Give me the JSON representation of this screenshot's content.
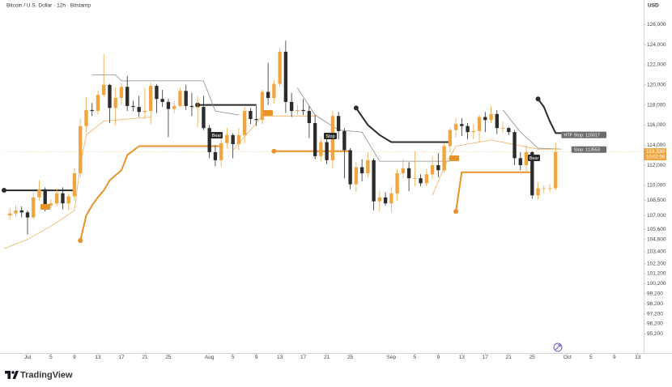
{
  "chart_data": {
    "type": "candlestick",
    "title": "Bitcoin / U.S. Dollar · 12h · Bitstamp",
    "currency": "USD",
    "brand": "TradingView",
    "up_color": "#f0a540",
    "down_color": "#2b2b2b",
    "x": [
      "Jun 28",
      "Jun 29",
      "Jun 30",
      "Jul 1",
      "Jul 2",
      "Jul 3",
      "Jul 4",
      "Jul 5",
      "Jul 6",
      "Jul 7",
      "Jul 8",
      "Jul 9",
      "Jul 10",
      "Jul 11",
      "Jul 12",
      "Jul 13",
      "Jul 14",
      "Jul 15",
      "Jul 16",
      "Jul 17",
      "Jul 18",
      "Jul 19",
      "Jul 20",
      "Jul 21",
      "Jul 22",
      "Jul 23",
      "Jul 24",
      "Jul 25",
      "Jul 26",
      "Jul 27",
      "Jul 28",
      "Jul 29",
      "Jul 30",
      "Jul 31",
      "Aug 1",
      "Aug 2",
      "Aug 3",
      "Aug 4",
      "Aug 5",
      "Aug 6",
      "Aug 7",
      "Aug 8",
      "Aug 9",
      "Aug 10",
      "Aug 11",
      "Aug 12",
      "Aug 13",
      "Aug 14",
      "Aug 15",
      "Aug 16",
      "Aug 17",
      "Aug 18",
      "Aug 19",
      "Aug 20",
      "Aug 21",
      "Aug 22",
      "Aug 23",
      "Aug 24",
      "Aug 25",
      "Aug 26",
      "Aug 27",
      "Aug 28",
      "Aug 29",
      "Aug 30",
      "Aug 31",
      "Sep 1",
      "Sep 2",
      "Sep 3",
      "Sep 4",
      "Sep 5",
      "Sep 6",
      "Sep 7",
      "Sep 8",
      "Sep 9",
      "Sep 10",
      "Sep 11",
      "Sep 12",
      "Sep 13",
      "Sep 14",
      "Sep 15",
      "Sep 16",
      "Sep 17",
      "Sep 18",
      "Sep 19",
      "Sep 20",
      "Sep 21",
      "Sep 22",
      "Sep 23",
      "Sep 24",
      "Sep 25",
      "Sep 26",
      "Sep 27",
      "Sep 28",
      "Sep 29"
    ],
    "open": [
      107000,
      107200,
      107500,
      107300,
      106800,
      108800,
      109600,
      108000,
      108200,
      109200,
      108200,
      108900,
      111200,
      115900,
      117500,
      117400,
      119000,
      120000,
      117700,
      118700,
      119800,
      117900,
      117800,
      117300,
      117400,
      119900,
      118600,
      118300,
      117600,
      117900,
      119400,
      117900,
      117800,
      117800,
      115700,
      113300,
      112500,
      114200,
      115000,
      114100,
      115000,
      117400,
      116600,
      116500,
      119300,
      118700,
      120100,
      123300,
      118300,
      117400,
      117500,
      117400,
      116200,
      112900,
      114300,
      112500,
      116900,
      115400,
      113500,
      110100,
      111800,
      111200,
      112500,
      108400,
      108800,
      108200,
      109200,
      111200,
      111700,
      110700,
      110700,
      110200,
      111100,
      112000,
      111500,
      113900,
      115500,
      116100,
      115900,
      115300,
      115400,
      116800,
      116500,
      117100,
      115700,
      115700,
      115300,
      112700,
      112000,
      113300,
      109000,
      109700,
      109700,
      109700
    ],
    "high": [
      107700,
      108000,
      107900,
      107500,
      109300,
      110500,
      109800,
      108600,
      109700,
      109800,
      109200,
      111700,
      116600,
      118800,
      118200,
      119400,
      123100,
      120100,
      119700,
      120200,
      120900,
      118400,
      118900,
      119700,
      120200,
      120100,
      119500,
      118600,
      118400,
      119700,
      120000,
      119200,
      118900,
      118900,
      116000,
      114000,
      114900,
      115700,
      115200,
      115700,
      117800,
      117700,
      117900,
      119500,
      122200,
      120500,
      123700,
      124400,
      119200,
      118000,
      118600,
      117900,
      117000,
      114700,
      114800,
      117400,
      117300,
      115700,
      113700,
      112300,
      112600,
      113300,
      112700,
      109400,
      109300,
      109800,
      111600,
      112600,
      112300,
      113400,
      111100,
      111600,
      112900,
      113200,
      114200,
      115700,
      116700,
      116700,
      116200,
      116100,
      117000,
      117300,
      117900,
      117500,
      116300,
      115800,
      115500,
      113300,
      114000,
      113400,
      110300,
      110000,
      110100,
      114300
    ],
    "low": [
      106600,
      106900,
      106800,
      105100,
      106600,
      108500,
      107400,
      107700,
      107900,
      107600,
      107500,
      108500,
      110900,
      115300,
      116900,
      117000,
      118800,
      116200,
      116000,
      118000,
      117400,
      117400,
      116800,
      116600,
      116100,
      117200,
      117800,
      114800,
      117200,
      117800,
      117500,
      116900,
      115800,
      115500,
      112700,
      111900,
      111900,
      113700,
      112700,
      113500,
      114200,
      116100,
      115900,
      116100,
      118000,
      118100,
      119800,
      117200,
      116800,
      117000,
      117000,
      114700,
      112600,
      112400,
      112100,
      111700,
      114600,
      110700,
      109600,
      109300,
      110400,
      110800,
      107500,
      107400,
      108000,
      107300,
      108500,
      110700,
      109400,
      109900,
      109900,
      109900,
      110600,
      110800,
      111300,
      113300,
      114800,
      114900,
      114600,
      114600,
      114300,
      115300,
      116200,
      115100,
      115200,
      115000,
      112000,
      111500,
      111300,
      108700,
      108600,
      109200,
      109300,
      109500
    ],
    "close": [
      107200,
      107500,
      107300,
      106800,
      108800,
      109600,
      108000,
      108200,
      109200,
      108200,
      108900,
      111200,
      115900,
      117500,
      117400,
      119000,
      120000,
      117700,
      118700,
      119800,
      117900,
      117800,
      117300,
      117400,
      119900,
      118600,
      118300,
      117600,
      117900,
      119400,
      117900,
      117800,
      117800,
      115700,
      113300,
      112500,
      114200,
      115000,
      114100,
      115000,
      117400,
      116600,
      116500,
      119300,
      118700,
      120100,
      123300,
      118300,
      117400,
      117500,
      117400,
      116200,
      112900,
      114300,
      112500,
      116900,
      115400,
      113500,
      110100,
      111800,
      111200,
      112500,
      108400,
      108800,
      108200,
      109200,
      111200,
      111700,
      110700,
      110700,
      110200,
      111100,
      112000,
      111500,
      113900,
      115500,
      116100,
      115900,
      115300,
      115400,
      116800,
      116500,
      117100,
      115700,
      115700,
      115300,
      112700,
      112000,
      113300,
      109000,
      109700,
      109700,
      109700,
      113330
    ],
    "xlim": [
      "Jun 27",
      "Oct 14"
    ],
    "xticks": [
      {
        "value": "Jul 1",
        "label": "Jul"
      },
      {
        "value": "Jul 5",
        "label": "5"
      },
      {
        "value": "Jul 9",
        "label": "9"
      },
      {
        "value": "Jul 13",
        "label": "13"
      },
      {
        "value": "Jul 17",
        "label": "17"
      },
      {
        "value": "Jul 21",
        "label": "21"
      },
      {
        "value": "Jul 25",
        "label": "25"
      },
      {
        "value": "Aug 1",
        "label": "Aug"
      },
      {
        "value": "Aug 5",
        "label": "5"
      },
      {
        "value": "Aug 9",
        "label": "9"
      },
      {
        "value": "Aug 13",
        "label": "13"
      },
      {
        "value": "Aug 17",
        "label": "17"
      },
      {
        "value": "Aug 21",
        "label": "21"
      },
      {
        "value": "Aug 25",
        "label": "25"
      },
      {
        "value": "Sep 1",
        "label": "Sep"
      },
      {
        "value": "Sep 5",
        "label": "5"
      },
      {
        "value": "Sep 9",
        "label": "9"
      },
      {
        "value": "Sep 13",
        "label": "13"
      },
      {
        "value": "Sep 17",
        "label": "17"
      },
      {
        "value": "Sep 21",
        "label": "21"
      },
      {
        "value": "Sep 25",
        "label": "25"
      },
      {
        "value": "Oct 1",
        "label": "Oct"
      },
      {
        "value": "Oct 5",
        "label": "5"
      },
      {
        "value": "Oct 9",
        "label": "9"
      },
      {
        "value": "Oct 13",
        "label": "13"
      }
    ],
    "ylim": [
      93300,
      127000
    ],
    "yticks": [
      {
        "value": 126000,
        "label": "126,000"
      },
      {
        "value": 124000,
        "label": "124,000"
      },
      {
        "value": 122000,
        "label": "122,000"
      },
      {
        "value": 120000,
        "label": "120,000"
      },
      {
        "value": 118000,
        "label": "118,000"
      },
      {
        "value": 116000,
        "label": "116,000"
      },
      {
        "value": 114000,
        "label": "114,000"
      },
      {
        "value": 112000,
        "label": "112,000"
      },
      {
        "value": 110000,
        "label": "110,000"
      },
      {
        "value": 108500,
        "label": "108,500"
      },
      {
        "value": 107000,
        "label": "107,000"
      },
      {
        "value": 105600,
        "label": "105,600"
      },
      {
        "value": 104600,
        "label": "104,600"
      },
      {
        "value": 103400,
        "label": "103,400"
      },
      {
        "value": 102200,
        "label": "102,200"
      },
      {
        "value": 101200,
        "label": "101,200"
      },
      {
        "value": 100200,
        "label": "100,200"
      },
      {
        "value": 99200,
        "label": "99,200"
      },
      {
        "value": 98200,
        "label": "98,200"
      },
      {
        "value": 97200,
        "label": "97,200"
      },
      {
        "value": 96200,
        "label": "96,200"
      },
      {
        "value": 95200,
        "label": "95,200"
      }
    ],
    "overlays": [
      {
        "color": "#2b2b2b",
        "width": 2,
        "start_dot": true,
        "x": [
          "Jun 27",
          "Jul 9",
          null,
          "Jul 30",
          "Aug 9",
          null,
          "Aug 26",
          "Aug 28",
          "Aug 30",
          "Sep 1",
          "Sep 11",
          null,
          "Sep 26",
          "Sep 27",
          "Sep 28",
          "Sep 29",
          "Sep 30"
        ],
        "values": [
          109500,
          109500,
          null,
          118000,
          118000,
          null,
          117700,
          116000,
          115000,
          114300,
          114300,
          null,
          118600,
          117800,
          116400,
          115200,
          115200
        ]
      },
      {
        "color": "#e8922a",
        "width": 2,
        "start_dot": true,
        "x": [
          "Jul 10",
          "Jul 11",
          "Jul 12",
          "Jul 13",
          "Jul 14",
          "Jul 15",
          "Jul 17",
          "Jul 18",
          "Jul 20",
          "Aug 3",
          null,
          "Aug 12",
          "Aug 25",
          null,
          "Sep 12",
          "Sep 13",
          "Sep 25"
        ],
        "values": [
          104500,
          107000,
          108000,
          108800,
          109500,
          110500,
          111500,
          113000,
          113900,
          113900,
          null,
          113400,
          113400,
          null,
          107400,
          111300,
          111300
        ]
      },
      {
        "color": "#8a8a8a",
        "width": 0.8,
        "start_dot": false,
        "x": [
          "Jul 12",
          "Jul 16",
          "Jul 17",
          "Jul 31",
          "Aug 2",
          "Aug 6",
          null,
          "Aug 16",
          "Aug 19",
          "Aug 23",
          "Aug 27",
          "Aug 30",
          "Sep 11",
          null,
          "Sep 20",
          "Sep 23",
          "Sep 26",
          "Sep 30"
        ],
        "values": [
          121000,
          121000,
          120400,
          120400,
          117400,
          117000,
          null,
          119700,
          117000,
          115500,
          115300,
          112400,
          112400,
          null,
          117500,
          115300,
          113700,
          113600
        ]
      },
      {
        "color": "#f0b060",
        "width": 0.8,
        "start_dot": false,
        "x": [
          "Jun 27",
          "Jul 1",
          "Jul 6",
          "Jul 9",
          "Jul 10",
          "Jul 11",
          "Jul 14",
          "Jul 22",
          null,
          "Aug 5",
          "Aug 8",
          "Aug 10",
          "Aug 19",
          null,
          "Sep 8",
          "Sep 10",
          "Sep 12",
          "Sep 18",
          "Sep 26",
          "Sep 30"
        ],
        "values": [
          103700,
          104600,
          106300,
          107500,
          112000,
          115000,
          116400,
          116800,
          null,
          113500,
          115500,
          116900,
          116900,
          null,
          109000,
          111800,
          113900,
          114500,
          113600,
          113600
        ]
      }
    ],
    "current_price": {
      "value": 113330,
      "label": "113,330",
      "countdown": "10:02:56",
      "color": "#f0a540"
    },
    "stop_tags": [
      {
        "value": 115017,
        "label": "HTF Stop: 115017"
      },
      {
        "value": 113553,
        "label": "Stop: 113553"
      }
    ],
    "signals": [
      "Bear",
      "Stop",
      "Bear"
    ]
  }
}
